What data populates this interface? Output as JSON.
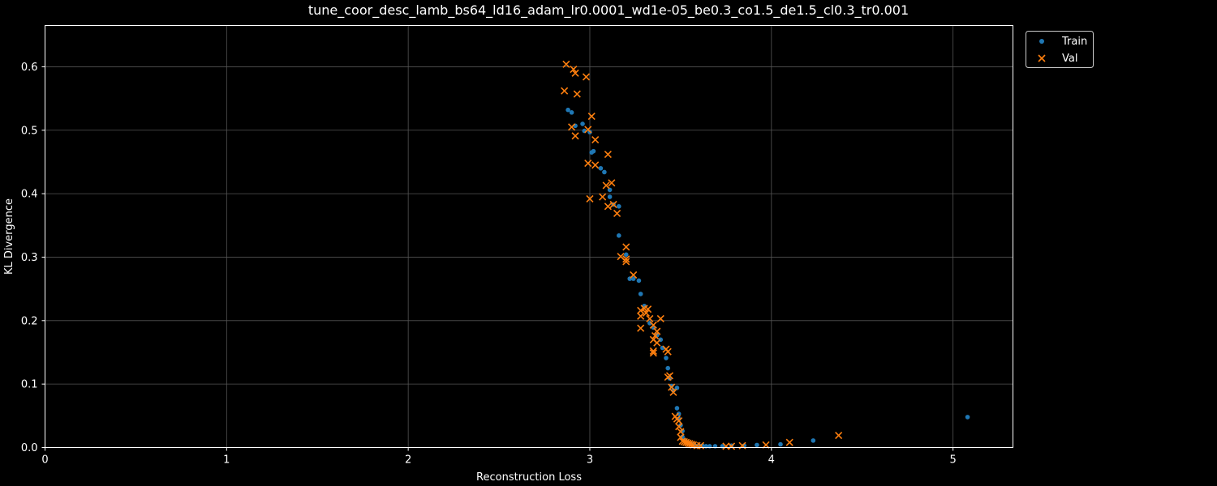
{
  "chart_data": {
    "type": "scatter",
    "title": "tune_coor_desc_lamb_bs64_ld16_adam_lr0.0001_wd1e-05_be0.3_co1.5_de1.5_cl0.3_tr0.001",
    "xlabel": "Reconstruction Loss",
    "ylabel": "KL Divergence",
    "xlim": [
      0,
      5.33
    ],
    "ylim": [
      0,
      0.665
    ],
    "xticks": [
      "0",
      "1",
      "2",
      "3",
      "4",
      "5"
    ],
    "xtick_values": [
      0,
      1,
      2,
      3,
      4,
      5
    ],
    "yticks": [
      "0.0",
      "0.1",
      "0.2",
      "0.3",
      "0.4",
      "0.5",
      "0.6"
    ],
    "ytick_values": [
      0,
      0.1,
      0.2,
      0.3,
      0.4,
      0.5,
      0.6
    ],
    "grid": true,
    "legend_position": "outside-top-right",
    "series": [
      {
        "name": "Train",
        "color": "#1f77b4",
        "marker": "circle",
        "points": [
          [
            2.88,
            0.532
          ],
          [
            2.9,
            0.528
          ],
          [
            2.92,
            0.507
          ],
          [
            2.96,
            0.51
          ],
          [
            2.97,
            0.499
          ],
          [
            3.0,
            0.497
          ],
          [
            3.01,
            0.465
          ],
          [
            3.02,
            0.467
          ],
          [
            3.06,
            0.44
          ],
          [
            3.08,
            0.434
          ],
          [
            3.11,
            0.406
          ],
          [
            3.11,
            0.395
          ],
          [
            3.13,
            0.383
          ],
          [
            3.16,
            0.38
          ],
          [
            3.16,
            0.334
          ],
          [
            3.2,
            0.304
          ],
          [
            3.22,
            0.266
          ],
          [
            3.24,
            0.266
          ],
          [
            3.27,
            0.263
          ],
          [
            3.28,
            0.242
          ],
          [
            3.3,
            0.223
          ],
          [
            3.33,
            0.196
          ],
          [
            3.35,
            0.189
          ],
          [
            3.37,
            0.177
          ],
          [
            3.39,
            0.17
          ],
          [
            3.4,
            0.157
          ],
          [
            3.42,
            0.141
          ],
          [
            3.43,
            0.125
          ],
          [
            3.44,
            0.109
          ],
          [
            3.45,
            0.097
          ],
          [
            3.46,
            0.09
          ],
          [
            3.48,
            0.094
          ],
          [
            3.48,
            0.062
          ],
          [
            3.49,
            0.053
          ],
          [
            3.49,
            0.045
          ],
          [
            3.5,
            0.035
          ],
          [
            3.51,
            0.026
          ],
          [
            3.51,
            0.017
          ],
          [
            3.52,
            0.012
          ],
          [
            3.53,
            0.009
          ],
          [
            3.54,
            0.007
          ],
          [
            3.55,
            0.006
          ],
          [
            3.56,
            0.005
          ],
          [
            3.57,
            0.004
          ],
          [
            3.58,
            0.003
          ],
          [
            3.6,
            0.003
          ],
          [
            3.62,
            0.003
          ],
          [
            3.64,
            0.002
          ],
          [
            3.66,
            0.002
          ],
          [
            3.69,
            0.002
          ],
          [
            3.73,
            0.002
          ],
          [
            3.78,
            0.003
          ],
          [
            3.85,
            0.003
          ],
          [
            3.92,
            0.004
          ],
          [
            4.05,
            0.005
          ],
          [
            4.23,
            0.011
          ],
          [
            5.08,
            0.048
          ]
        ]
      },
      {
        "name": "Val",
        "color": "#ff7f0e",
        "marker": "x",
        "points": [
          [
            2.87,
            0.604
          ],
          [
            2.91,
            0.596
          ],
          [
            2.92,
            0.59
          ],
          [
            2.98,
            0.584
          ],
          [
            2.86,
            0.562
          ],
          [
            2.93,
            0.557
          ],
          [
            3.01,
            0.522
          ],
          [
            2.9,
            0.505
          ],
          [
            2.99,
            0.501
          ],
          [
            2.92,
            0.491
          ],
          [
            3.03,
            0.485
          ],
          [
            3.1,
            0.462
          ],
          [
            2.99,
            0.448
          ],
          [
            3.03,
            0.445
          ],
          [
            3.12,
            0.417
          ],
          [
            3.09,
            0.413
          ],
          [
            3.0,
            0.392
          ],
          [
            3.07,
            0.395
          ],
          [
            3.1,
            0.38
          ],
          [
            3.13,
            0.383
          ],
          [
            3.15,
            0.369
          ],
          [
            3.2,
            0.316
          ],
          [
            3.17,
            0.301
          ],
          [
            3.2,
            0.297
          ],
          [
            3.2,
            0.293
          ],
          [
            3.24,
            0.272
          ],
          [
            3.3,
            0.219
          ],
          [
            3.32,
            0.218
          ],
          [
            3.28,
            0.216
          ],
          [
            3.31,
            0.212
          ],
          [
            3.28,
            0.207
          ],
          [
            3.33,
            0.203
          ],
          [
            3.39,
            0.203
          ],
          [
            3.28,
            0.188
          ],
          [
            3.35,
            0.193
          ],
          [
            3.37,
            0.183
          ],
          [
            3.36,
            0.176
          ],
          [
            3.35,
            0.17
          ],
          [
            3.37,
            0.165
          ],
          [
            3.35,
            0.152
          ],
          [
            3.35,
            0.149
          ],
          [
            3.42,
            0.155
          ],
          [
            3.43,
            0.151
          ],
          [
            3.44,
            0.113
          ],
          [
            3.43,
            0.111
          ],
          [
            3.45,
            0.095
          ],
          [
            3.46,
            0.087
          ],
          [
            3.47,
            0.049
          ],
          [
            3.48,
            0.045
          ],
          [
            3.49,
            0.042
          ],
          [
            3.49,
            0.033
          ],
          [
            3.5,
            0.025
          ],
          [
            3.5,
            0.016
          ],
          [
            3.51,
            0.01
          ],
          [
            3.52,
            0.009
          ],
          [
            3.53,
            0.008
          ],
          [
            3.54,
            0.007
          ],
          [
            3.55,
            0.006
          ],
          [
            3.56,
            0.005
          ],
          [
            3.57,
            0.004
          ],
          [
            3.59,
            0.003
          ],
          [
            3.61,
            0.003
          ],
          [
            3.75,
            0.002
          ],
          [
            3.78,
            0.002
          ],
          [
            3.84,
            0.003
          ],
          [
            3.97,
            0.004
          ],
          [
            4.1,
            0.008
          ],
          [
            4.37,
            0.019
          ]
        ]
      }
    ]
  }
}
